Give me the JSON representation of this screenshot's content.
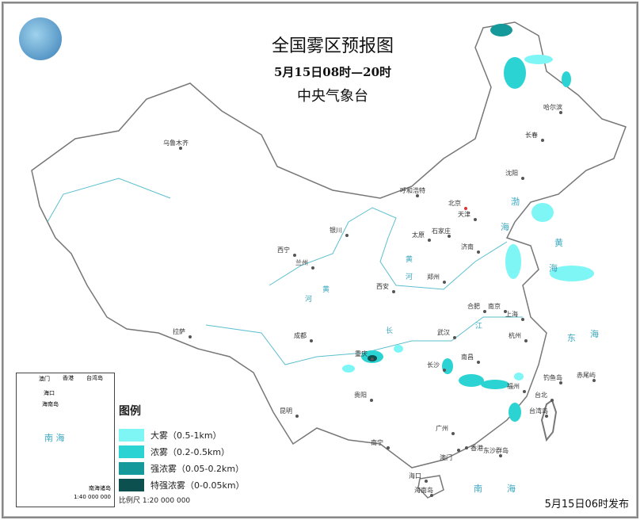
{
  "title": "全国雾区预报图",
  "period": "5月15日08时—20时",
  "issuer": "中央气象台",
  "issued": "5月15日06时发布",
  "legend": {
    "title": "图例",
    "items": [
      {
        "label": "大雾（0.5-1km）",
        "color": "#7ff6f6"
      },
      {
        "label": "浓雾（0.2-0.5km）",
        "color": "#2cd3d3"
      },
      {
        "label": "强浓雾（0.05-0.2km）",
        "color": "#16999a"
      },
      {
        "label": "特强浓雾（0-0.05km）",
        "color": "#0c5150"
      }
    ],
    "scale": "比例尺  1:20 000 000"
  },
  "inset": {
    "sea": "南  海",
    "islands": "南海诸岛",
    "scale": "1:40 000 000",
    "labels": [
      "澳门",
      "香港",
      "台湾岛",
      "海口",
      "海南岛"
    ]
  },
  "cities": [
    "乌鲁木齐",
    "拉萨",
    "西宁",
    "兰州",
    "银川",
    "呼和浩特",
    "北京",
    "天津",
    "石家庄",
    "太原",
    "济南",
    "郑州",
    "西安",
    "成都",
    "重庆",
    "贵阳",
    "昆明",
    "南宁",
    "广州",
    "香港",
    "澳门",
    "海口",
    "海南岛",
    "长沙",
    "武汉",
    "南昌",
    "福州",
    "台北",
    "台湾岛",
    "合肥",
    "南京",
    "上海",
    "杭州",
    "哈尔滨",
    "长春",
    "沈阳",
    "钓鱼岛",
    "赤尾屿",
    "东沙群岛"
  ],
  "water_labels": [
    "渤",
    "海",
    "黄",
    "海",
    "东",
    "海",
    "南",
    "海",
    "黄",
    "河",
    "长",
    "江",
    "黄",
    "河"
  ],
  "colors": {
    "border": "#777",
    "river": "#5bbfcf",
    "capital": "#d33"
  }
}
